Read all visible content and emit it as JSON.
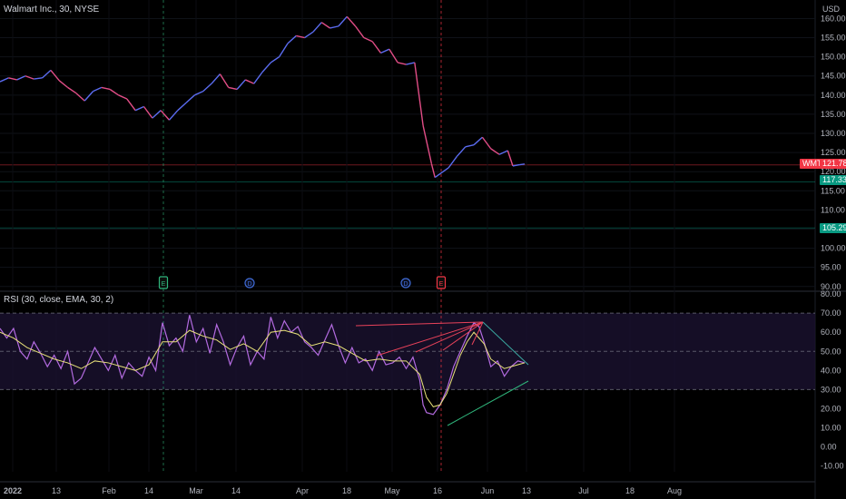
{
  "header": {
    "symbol_title": "Walmart Inc., 30, NYSE",
    "currency": "USD",
    "rsi_title": "RSI (30, close, EMA, 30, 2)"
  },
  "colors": {
    "background": "#000000",
    "candle_up": "#5b6cf0",
    "candle_down": "#e14d86",
    "rsi_line": "#b36be0",
    "rsi_ma": "#e9e27a",
    "rsi_band_fill": "#1a1230",
    "trend_red": "#e8425a",
    "trend_teal": "#3aa8a0",
    "trend_green": "#2fb57b",
    "badge_wmt": "#f23645",
    "badge_green": "#089981",
    "event_marker_green": "#2fb57b",
    "event_marker_blue": "#3f6bd6",
    "event_marker_red": "#f23645"
  },
  "price_badges": {
    "wmt_label": "WMT",
    "wmt_value": "121.78",
    "level_1": "117.33",
    "level_2": "105.29"
  },
  "event_markers": [
    {
      "letter": "E",
      "date": "Feb 17",
      "color": "green"
    },
    {
      "letter": "D",
      "date": "Mar 10",
      "color": "blue"
    },
    {
      "letter": "D",
      "date": "May 5",
      "color": "blue"
    },
    {
      "letter": "E",
      "date": "May 17",
      "color": "red"
    }
  ],
  "chart_data": [
    {
      "type": "line",
      "name": "price",
      "title": "Walmart Inc., 30, NYSE",
      "ylabel": "USD",
      "ylim": [
        89,
        162
      ],
      "y_ticks": [
        "160.00",
        "155.00",
        "150.00",
        "145.00",
        "140.00",
        "135.00",
        "130.00",
        "125.00",
        "120.00",
        "115.00",
        "110.00",
        "105.00",
        "100.00",
        "95.00",
        "90.00"
      ],
      "x_ticks": [
        "2022",
        "13",
        "Feb",
        "14",
        "Mar",
        "14",
        "Apr",
        "18",
        "May",
        "16",
        "Jun",
        "13",
        "Jul",
        "18",
        "Aug"
      ],
      "series": [
        {
          "values": [
            [
              0,
              143.5
            ],
            [
              5,
              144.5
            ],
            [
              10,
              144
            ],
            [
              15,
              145
            ],
            [
              20,
              144.2
            ],
            [
              25,
              144.5
            ],
            [
              30,
              146.5
            ],
            [
              35,
              143.8
            ],
            [
              40,
              142
            ],
            [
              45,
              140.5
            ],
            [
              50,
              138.5
            ],
            [
              55,
              141
            ],
            [
              60,
              142
            ],
            [
              65,
              141.5
            ],
            [
              70,
              140
            ],
            [
              75,
              139
            ],
            [
              80,
              136
            ],
            [
              85,
              137
            ],
            [
              90,
              134
            ],
            [
              95,
              136
            ],
            [
              100,
              133.5
            ],
            [
              105,
              136
            ],
            [
              110,
              138
            ],
            [
              115,
              140
            ],
            [
              120,
              141
            ],
            [
              125,
              143
            ],
            [
              130,
              145.5
            ],
            [
              135,
              142
            ],
            [
              140,
              141.5
            ],
            [
              145,
              144
            ],
            [
              150,
              143
            ],
            [
              155,
              146
            ],
            [
              160,
              148.5
            ],
            [
              165,
              150
            ],
            [
              170,
              153.5
            ],
            [
              175,
              155.5
            ],
            [
              180,
              155
            ],
            [
              185,
              156.5
            ],
            [
              190,
              159
            ],
            [
              195,
              157.5
            ],
            [
              200,
              158
            ],
            [
              205,
              160.5
            ],
            [
              210,
              158
            ],
            [
              215,
              155
            ],
            [
              220,
              154
            ],
            [
              225,
              151
            ],
            [
              230,
              152
            ],
            [
              235,
              148.5
            ],
            [
              240,
              148
            ],
            [
              245,
              148.5
            ],
            [
              250,
              132
            ],
            [
              255,
              122
            ],
            [
              257,
              118.5
            ],
            [
              265,
              121
            ],
            [
              270,
              124
            ],
            [
              275,
              126.5
            ],
            [
              280,
              127
            ],
            [
              285,
              129
            ],
            [
              290,
              126
            ],
            [
              295,
              124.5
            ],
            [
              300,
              125.5
            ],
            [
              303,
              121.5
            ],
            [
              307,
              121.8
            ],
            [
              310,
              122
            ]
          ]
        }
      ],
      "levels": [
        121.78,
        117.33,
        105.29
      ]
    },
    {
      "type": "line",
      "name": "rsi",
      "title": "RSI (30, close, EMA, 30, 2)",
      "ylim": [
        -13,
        81
      ],
      "y_ticks": [
        "80.00",
        "70.00",
        "60.00",
        "50.00",
        "40.00",
        "30.00",
        "20.00",
        "10.00",
        "0.00",
        "-10.00"
      ],
      "bands": [
        70,
        50,
        30
      ],
      "series": [
        {
          "name": "RSI",
          "values": [
            [
              0,
              62
            ],
            [
              4,
              57
            ],
            [
              8,
              62
            ],
            [
              12,
              50
            ],
            [
              16,
              46
            ],
            [
              20,
              55
            ],
            [
              24,
              49
            ],
            [
              28,
              42
            ],
            [
              32,
              48
            ],
            [
              36,
              41
            ],
            [
              40,
              50
            ],
            [
              44,
              33
            ],
            [
              48,
              36
            ],
            [
              52,
              44
            ],
            [
              56,
              52
            ],
            [
              60,
              46
            ],
            [
              64,
              40
            ],
            [
              68,
              48
            ],
            [
              72,
              36
            ],
            [
              76,
              44
            ],
            [
              80,
              40
            ],
            [
              84,
              37
            ],
            [
              88,
              47
            ],
            [
              92,
              40
            ],
            [
              96,
              65
            ],
            [
              100,
              53
            ],
            [
              104,
              57
            ],
            [
              108,
              50
            ],
            [
              112,
              69
            ],
            [
              116,
              55
            ],
            [
              120,
              62
            ],
            [
              124,
              49
            ],
            [
              128,
              64
            ],
            [
              132,
              55
            ],
            [
              136,
              43
            ],
            [
              140,
              52
            ],
            [
              144,
              58
            ],
            [
              148,
              43
            ],
            [
              152,
              50
            ],
            [
              156,
              46
            ],
            [
              160,
              68
            ],
            [
              164,
              57
            ],
            [
              168,
              66
            ],
            [
              172,
              60
            ],
            [
              176,
              63
            ],
            [
              180,
              55
            ],
            [
              184,
              52
            ],
            [
              188,
              48
            ],
            [
              192,
              56
            ],
            [
              196,
              64
            ],
            [
              200,
              53
            ],
            [
              204,
              44
            ],
            [
              208,
              52
            ],
            [
              212,
              44
            ],
            [
              216,
              46
            ],
            [
              220,
              40
            ],
            [
              224,
              50
            ],
            [
              228,
              43
            ],
            [
              232,
              44
            ],
            [
              236,
              47
            ],
            [
              240,
              41
            ],
            [
              244,
              47
            ],
            [
              248,
              35
            ],
            [
              250,
              22
            ],
            [
              252,
              18
            ],
            [
              256,
              17
            ],
            [
              260,
              22
            ],
            [
              264,
              30
            ],
            [
              268,
              42
            ],
            [
              272,
              50
            ],
            [
              276,
              58
            ],
            [
              280,
              65
            ],
            [
              283,
              63
            ],
            [
              286,
              55
            ],
            [
              290,
              42
            ],
            [
              294,
              45
            ],
            [
              298,
              37
            ],
            [
              302,
              42
            ],
            [
              306,
              45
            ],
            [
              310,
              44
            ]
          ]
        },
        {
          "name": "MA",
          "values": [
            [
              0,
              60
            ],
            [
              8,
              57
            ],
            [
              16,
              52
            ],
            [
              24,
              49
            ],
            [
              32,
              46
            ],
            [
              40,
              44
            ],
            [
              48,
              41
            ],
            [
              56,
              45
            ],
            [
              64,
              44
            ],
            [
              72,
              42
            ],
            [
              80,
              40
            ],
            [
              88,
              43
            ],
            [
              96,
              55
            ],
            [
              104,
              55
            ],
            [
              112,
              61
            ],
            [
              120,
              58
            ],
            [
              128,
              56
            ],
            [
              136,
              51
            ],
            [
              144,
              54
            ],
            [
              152,
              50
            ],
            [
              160,
              60
            ],
            [
              168,
              61
            ],
            [
              176,
              59
            ],
            [
              184,
              53
            ],
            [
              192,
              55
            ],
            [
              200,
              53
            ],
            [
              208,
              49
            ],
            [
              216,
              45
            ],
            [
              224,
              46
            ],
            [
              232,
              45
            ],
            [
              240,
              45
            ],
            [
              248,
              38
            ],
            [
              252,
              26
            ],
            [
              256,
              21
            ],
            [
              260,
              22
            ],
            [
              264,
              28
            ],
            [
              268,
              38
            ],
            [
              272,
              48
            ],
            [
              276,
              55
            ],
            [
              280,
              60
            ],
            [
              286,
              54
            ],
            [
              290,
              46
            ],
            [
              298,
              41
            ],
            [
              306,
              43
            ],
            [
              310,
              44
            ]
          ]
        }
      ]
    }
  ]
}
